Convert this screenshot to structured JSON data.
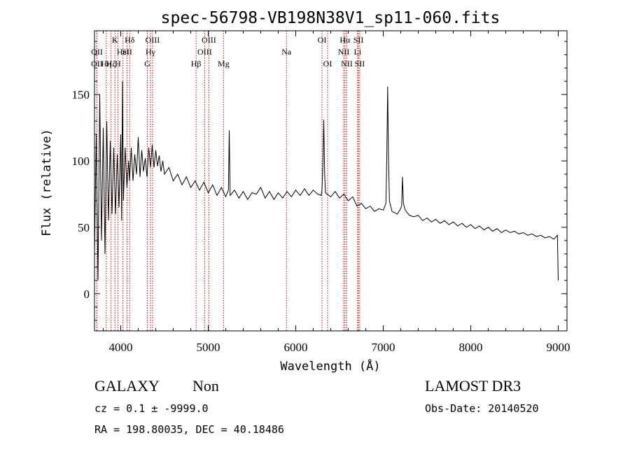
{
  "chart_data": {
    "type": "line",
    "title": "spec-56798-VB198N38V1_sp11-060.fits",
    "xlabel": "Wavelength (Å)",
    "ylabel": "Flux (relative)",
    "xlim": [
      3700,
      9100
    ],
    "ylim": [
      -28,
      198
    ],
    "xticks": [
      4000,
      5000,
      6000,
      7000,
      8000,
      9000
    ],
    "yticks": [
      0,
      50,
      100,
      150
    ],
    "spectrum": [
      [
        3700,
        30
      ],
      [
        3720,
        120
      ],
      [
        3740,
        10
      ],
      [
        3760,
        150
      ],
      [
        3780,
        40
      ],
      [
        3800,
        125
      ],
      [
        3820,
        30
      ],
      [
        3840,
        130
      ],
      [
        3860,
        55
      ],
      [
        3880,
        115
      ],
      [
        3900,
        60
      ],
      [
        3920,
        110
      ],
      [
        3940,
        60
      ],
      [
        3960,
        105
      ],
      [
        3980,
        65
      ],
      [
        4000,
        120
      ],
      [
        4010,
        55
      ],
      [
        4020,
        160
      ],
      [
        4030,
        70
      ],
      [
        4050,
        110
      ],
      [
        4070,
        80
      ],
      [
        4090,
        100
      ],
      [
        4101,
        85
      ],
      [
        4120,
        110
      ],
      [
        4140,
        85
      ],
      [
        4160,
        105
      ],
      [
        4180,
        90
      ],
      [
        4200,
        118
      ],
      [
        4220,
        88
      ],
      [
        4240,
        108
      ],
      [
        4260,
        92
      ],
      [
        4280,
        102
      ],
      [
        4300,
        88
      ],
      [
        4320,
        110
      ],
      [
        4340,
        95
      ],
      [
        4360,
        112
      ],
      [
        4380,
        95
      ],
      [
        4400,
        108
      ],
      [
        4420,
        96
      ],
      [
        4440,
        104
      ],
      [
        4460,
        92
      ],
      [
        4480,
        100
      ],
      [
        4500,
        90
      ],
      [
        4550,
        95
      ],
      [
        4600,
        85
      ],
      [
        4650,
        90
      ],
      [
        4700,
        82
      ],
      [
        4750,
        88
      ],
      [
        4800,
        80
      ],
      [
        4850,
        85
      ],
      [
        4900,
        78
      ],
      [
        4950,
        84
      ],
      [
        5000,
        76
      ],
      [
        5050,
        82
      ],
      [
        5100,
        74
      ],
      [
        5150,
        80
      ],
      [
        5200,
        73
      ],
      [
        5230,
        78
      ],
      [
        5240,
        123
      ],
      [
        5250,
        74
      ],
      [
        5300,
        78
      ],
      [
        5350,
        72
      ],
      [
        5400,
        77
      ],
      [
        5450,
        71
      ],
      [
        5500,
        76
      ],
      [
        5550,
        75
      ],
      [
        5600,
        80
      ],
      [
        5650,
        72
      ],
      [
        5700,
        77
      ],
      [
        5750,
        71
      ],
      [
        5800,
        76
      ],
      [
        5850,
        72
      ],
      [
        5900,
        77
      ],
      [
        5950,
        73
      ],
      [
        6000,
        78
      ],
      [
        6050,
        74
      ],
      [
        6100,
        79
      ],
      [
        6150,
        74
      ],
      [
        6200,
        78
      ],
      [
        6250,
        75
      ],
      [
        6290,
        74
      ],
      [
        6300,
        78
      ],
      [
        6310,
        98
      ],
      [
        6320,
        131
      ],
      [
        6330,
        90
      ],
      [
        6340,
        76
      ],
      [
        6400,
        73
      ],
      [
        6450,
        77
      ],
      [
        6500,
        72
      ],
      [
        6550,
        75
      ],
      [
        6600,
        70
      ],
      [
        6650,
        73
      ],
      [
        6700,
        66
      ],
      [
        6750,
        68
      ],
      [
        6800,
        64
      ],
      [
        6850,
        66
      ],
      [
        6900,
        62
      ],
      [
        6950,
        64
      ],
      [
        7000,
        63
      ],
      [
        7030,
        68
      ],
      [
        7040,
        100
      ],
      [
        7050,
        156
      ],
      [
        7060,
        103
      ],
      [
        7070,
        70
      ],
      [
        7100,
        62
      ],
      [
        7130,
        61
      ],
      [
        7160,
        60
      ],
      [
        7190,
        63
      ],
      [
        7210,
        66
      ],
      [
        7220,
        88
      ],
      [
        7230,
        68
      ],
      [
        7250,
        63
      ],
      [
        7300,
        59
      ],
      [
        7350,
        58
      ],
      [
        7400,
        59
      ],
      [
        7450,
        55
      ],
      [
        7500,
        57
      ],
      [
        7550,
        54
      ],
      [
        7600,
        56
      ],
      [
        7650,
        53
      ],
      [
        7700,
        55
      ],
      [
        7750,
        52
      ],
      [
        7800,
        54
      ],
      [
        7850,
        51
      ],
      [
        7900,
        53
      ],
      [
        7950,
        50
      ],
      [
        8000,
        52
      ],
      [
        8050,
        49
      ],
      [
        8100,
        51
      ],
      [
        8150,
        48
      ],
      [
        8200,
        50
      ],
      [
        8250,
        47
      ],
      [
        8300,
        49
      ],
      [
        8350,
        46
      ],
      [
        8400,
        48
      ],
      [
        8450,
        46
      ],
      [
        8500,
        47
      ],
      [
        8550,
        45
      ],
      [
        8600,
        46
      ],
      [
        8650,
        44
      ],
      [
        8700,
        45
      ],
      [
        8750,
        43
      ],
      [
        8800,
        44
      ],
      [
        8850,
        42
      ],
      [
        8900,
        43
      ],
      [
        8950,
        41
      ],
      [
        8990,
        44
      ],
      [
        9000,
        10
      ]
    ],
    "line_markers": [
      {
        "wl": 3727,
        "label": "OII",
        "row": 3
      },
      {
        "wl": 3728,
        "label": "OII",
        "row": 2
      },
      {
        "wl": 3835,
        "label": "Hη",
        "row": 3
      },
      {
        "wl": 3889,
        "label": "Hζ",
        "row": 3
      },
      {
        "wl": 3934,
        "label": "K",
        "row": 1
      },
      {
        "wl": 3968,
        "label": "H",
        "row": 3
      },
      {
        "wl": 4026,
        "label": "HeI",
        "row": 2
      },
      {
        "wl": 4072,
        "label": "SII",
        "row": 2
      },
      {
        "wl": 4102,
        "label": "Hδ",
        "row": 1
      },
      {
        "wl": 4304,
        "label": "G",
        "row": 3
      },
      {
        "wl": 4340,
        "label": "Hγ",
        "row": 2
      },
      {
        "wl": 4363,
        "label": "OIII",
        "row": 1
      },
      {
        "wl": 4861,
        "label": "Hβ",
        "row": 3
      },
      {
        "wl": 4959,
        "label": "OIII",
        "row": 2
      },
      {
        "wl": 5007,
        "label": "OIII",
        "row": 1
      },
      {
        "wl": 5175,
        "label": "Mg",
        "row": 3
      },
      {
        "wl": 5894,
        "label": "Na",
        "row": 2
      },
      {
        "wl": 6300,
        "label": "OI",
        "row": 1
      },
      {
        "wl": 6364,
        "label": "OI",
        "row": 3
      },
      {
        "wl": 6548,
        "label": "NII",
        "row": 2
      },
      {
        "wl": 6563,
        "label": "Hα",
        "row": 1
      },
      {
        "wl": 6583,
        "label": "NII",
        "row": 3
      },
      {
        "wl": 6707,
        "label": "Li",
        "row": 2
      },
      {
        "wl": 6716,
        "label": "SII",
        "row": 1
      },
      {
        "wl": 6731,
        "label": "SII",
        "row": 3
      }
    ],
    "marker_color": "#cc0000",
    "line_color": "#000000"
  },
  "info": {
    "class": "GALAXY",
    "subclass": "Non",
    "survey": "LAMOST DR3",
    "cz": "cz = 0.1 ± -9999.0",
    "obs_date": "Obs-Date: 20140520",
    "radec": "RA = 198.80035, DEC =  40.18486"
  }
}
